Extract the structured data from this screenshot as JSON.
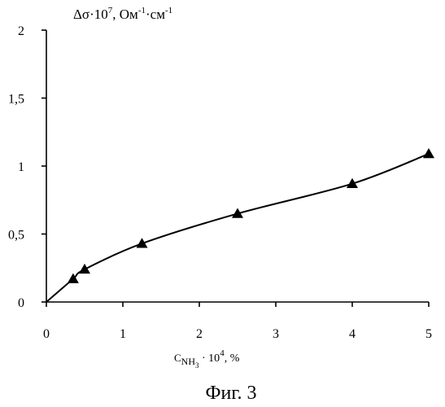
{
  "chart_data": {
    "type": "line",
    "x": [
      0,
      0.35,
      0.5,
      1.25,
      2.5,
      4.0,
      5.0
    ],
    "series": [
      {
        "values": [
          0,
          0.17,
          0.24,
          0.43,
          0.65,
          0.87,
          1.09
        ]
      }
    ],
    "markers": [
      {
        "x": 0.35,
        "y": 0.17
      },
      {
        "x": 0.5,
        "y": 0.24
      },
      {
        "x": 1.25,
        "y": 0.43
      },
      {
        "x": 2.5,
        "y": 0.65
      },
      {
        "x": 4.0,
        "y": 0.87
      },
      {
        "x": 5.0,
        "y": 1.09
      }
    ],
    "xlim": [
      0,
      5
    ],
    "ylim": [
      0,
      2
    ],
    "xticks": [
      "0",
      "1",
      "2",
      "3",
      "4",
      "5"
    ],
    "yticks": [
      "0",
      "0,5",
      "1",
      "1,5",
      "2"
    ],
    "ylabel": {
      "main": "Δσ·10",
      "exp": "7",
      "unit1": ", Ом",
      "unit1_exp": "-1",
      "unit2": "·см",
      "unit2_exp": "-1"
    },
    "xlabel": {
      "main": "C",
      "sub": "NH",
      "sub2": "3",
      "mid": " · 10",
      "exp": "4",
      "unit": ", %"
    },
    "grid": false,
    "marker_shape": "triangle"
  },
  "caption": "Фиг. 3"
}
